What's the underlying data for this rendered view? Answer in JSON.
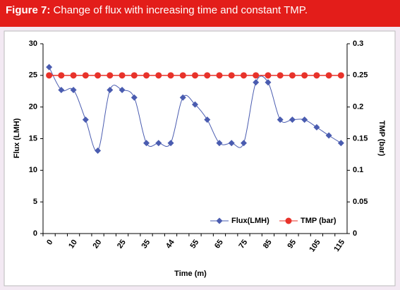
{
  "chart_data": {
    "type": "line",
    "title_prefix": "Figure 7:",
    "title": "Change of flux with increasing time and constant TMP.",
    "x_label": "Time (m)",
    "y_label": "Flux (LMH)",
    "y2_label": "TMP (bar)",
    "categories": [
      "0",
      null,
      "10",
      null,
      "20",
      null,
      "25",
      null,
      "35",
      null,
      "44",
      null,
      "55",
      null,
      "65",
      null,
      "75",
      null,
      "85",
      null,
      "95",
      null,
      "105",
      null,
      "115"
    ],
    "series": [
      {
        "name": "Flux(LMH)",
        "color": "#4a5cb0",
        "marker": "diamond",
        "smooth": true,
        "values": [
          26.3,
          22.7,
          22.7,
          18,
          13.1,
          22.7,
          22.7,
          21.5,
          14.3,
          14.3,
          14.3,
          21.5,
          20.4,
          18,
          14.3,
          14.3,
          14.3,
          23.9,
          23.9,
          18,
          18,
          18,
          16.8,
          15.5,
          14.3
        ]
      },
      {
        "name": "TMP (bar)",
        "color": "#e8322a",
        "marker": "circle",
        "axis": "y2",
        "values": [
          0.25,
          0.25,
          0.25,
          0.25,
          0.25,
          0.25,
          0.25,
          0.25,
          0.25,
          0.25,
          0.25,
          0.25,
          0.25,
          0.25,
          0.25,
          0.25,
          0.25,
          0.25,
          0.25,
          0.25,
          0.25,
          0.25,
          0.25,
          0.25,
          0.25
        ]
      }
    ],
    "ylim": [
      0,
      30
    ],
    "yticks": [
      0,
      5,
      10,
      15,
      20,
      25,
      30
    ],
    "y2lim": [
      0,
      0.3
    ],
    "y2ticks": [
      0,
      0.05,
      0.1,
      0.15,
      0.2,
      0.25,
      0.3
    ],
    "grid": false,
    "legend": "lower right"
  }
}
